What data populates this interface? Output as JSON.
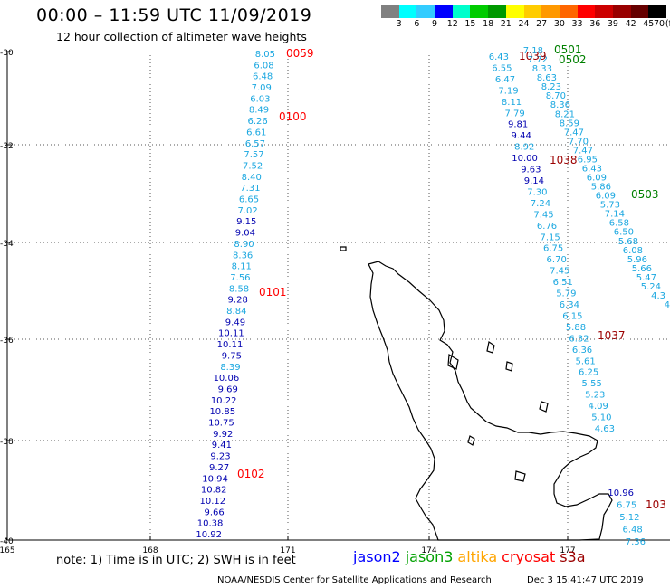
{
  "header": {
    "title": "00:00 – 11:59 UTC 11/09/2019",
    "subtitle": "12 hour collection of altimeter wave heights"
  },
  "scale": {
    "unit_label": "(ft)",
    "ticks": [
      "3",
      "6",
      "9",
      "12",
      "15",
      "18",
      "21",
      "24",
      "27",
      "30",
      "33",
      "36",
      "39",
      "42",
      "45",
      "70"
    ],
    "colors": [
      "#808080",
      "#00ffff",
      "#33ccff",
      "#0000ff",
      "#00ffcc",
      "#00cc00",
      "#009900",
      "#ffff00",
      "#ffcc00",
      "#ff9900",
      "#ff6600",
      "#ff0000",
      "#cc0000",
      "#990000",
      "#660000",
      "#000000"
    ]
  },
  "map": {
    "lat_labels": [
      "-30",
      "-32",
      "-34",
      "-36",
      "-38",
      "-40"
    ],
    "lon_labels": [
      "165",
      "168",
      "171",
      "174",
      "177"
    ],
    "line_color": "#000000",
    "grid_color": "#555555",
    "coast_color": "#000000"
  },
  "tracks": {
    "colors": {
      "light": "#1aa7e0",
      "dark": "#0000b0",
      "red": "#ff0000",
      "darkred": "#9b0000",
      "green": "#008000"
    },
    "track1": [
      {
        "v": "8.05",
        "c": "light"
      },
      {
        "v": "6.08",
        "c": "light"
      },
      {
        "v": "6.48",
        "c": "light"
      },
      {
        "v": "7.09",
        "c": "light"
      },
      {
        "v": "6.03",
        "c": "light"
      },
      {
        "v": "8.49",
        "c": "light"
      },
      {
        "v": "6.26",
        "c": "light"
      },
      {
        "v": "6.61",
        "c": "light"
      },
      {
        "v": "6.57",
        "c": "light"
      },
      {
        "v": "7.57",
        "c": "light"
      },
      {
        "v": "7.52",
        "c": "light"
      },
      {
        "v": "8.40",
        "c": "light"
      },
      {
        "v": "7.31",
        "c": "light"
      },
      {
        "v": "6.65",
        "c": "light"
      },
      {
        "v": "7.02",
        "c": "light"
      },
      {
        "v": "9.15",
        "c": "dark"
      },
      {
        "v": "9.04",
        "c": "dark"
      },
      {
        "v": "8.90",
        "c": "light"
      },
      {
        "v": "8.36",
        "c": "light"
      },
      {
        "v": "8.11",
        "c": "light"
      },
      {
        "v": "7.56",
        "c": "light"
      },
      {
        "v": "8.58",
        "c": "light"
      },
      {
        "v": "9.28",
        "c": "dark"
      },
      {
        "v": "8.84",
        "c": "light"
      },
      {
        "v": "9.49",
        "c": "dark"
      },
      {
        "v": "10.11",
        "c": "dark"
      },
      {
        "v": "10.11",
        "c": "dark"
      },
      {
        "v": "9.75",
        "c": "dark"
      },
      {
        "v": "8.39",
        "c": "light"
      },
      {
        "v": "10.06",
        "c": "dark"
      },
      {
        "v": "9.69",
        "c": "dark"
      },
      {
        "v": "10.22",
        "c": "dark"
      },
      {
        "v": "10.85",
        "c": "dark"
      },
      {
        "v": "10.75",
        "c": "dark"
      },
      {
        "v": "9.92",
        "c": "dark"
      },
      {
        "v": "9.41",
        "c": "dark"
      },
      {
        "v": "9.23",
        "c": "dark"
      },
      {
        "v": "9.27",
        "c": "dark"
      },
      {
        "v": "10.94",
        "c": "dark"
      },
      {
        "v": "10.82",
        "c": "dark"
      },
      {
        "v": "10.12",
        "c": "dark"
      },
      {
        "v": "9.66",
        "c": "dark"
      },
      {
        "v": "10.38",
        "c": "dark"
      },
      {
        "v": "10.92",
        "c": "dark"
      }
    ],
    "track2": [
      {
        "v": "6.43",
        "c": "light"
      },
      {
        "v": "6.55",
        "c": "light"
      },
      {
        "v": "6.47",
        "c": "light"
      },
      {
        "v": "7.19",
        "c": "light"
      },
      {
        "v": "8.11",
        "c": "light"
      },
      {
        "v": "7.79",
        "c": "light"
      },
      {
        "v": "9.81",
        "c": "dark"
      },
      {
        "v": "9.44",
        "c": "dark"
      },
      {
        "v": "8.92",
        "c": "light"
      },
      {
        "v": "10.00",
        "c": "dark"
      },
      {
        "v": "9.63",
        "c": "dark"
      },
      {
        "v": "9.14",
        "c": "dark"
      },
      {
        "v": "7.30",
        "c": "light"
      },
      {
        "v": "7.24",
        "c": "light"
      },
      {
        "v": "7.45",
        "c": "light"
      },
      {
        "v": "6.76",
        "c": "light"
      },
      {
        "v": "7.15",
        "c": "light"
      },
      {
        "v": "6.75",
        "c": "light"
      },
      {
        "v": "6.70",
        "c": "light"
      },
      {
        "v": "7.45",
        "c": "light"
      },
      {
        "v": "6.51",
        "c": "light"
      },
      {
        "v": "5.79",
        "c": "light"
      },
      {
        "v": "6.34",
        "c": "light"
      },
      {
        "v": "6.15",
        "c": "light"
      },
      {
        "v": "5.88",
        "c": "light"
      },
      {
        "v": "6.32",
        "c": "light"
      },
      {
        "v": "6.36",
        "c": "light"
      },
      {
        "v": "5.61",
        "c": "light"
      },
      {
        "v": "6.25",
        "c": "light"
      },
      {
        "v": "5.55",
        "c": "light"
      },
      {
        "v": "5.23",
        "c": "light"
      },
      {
        "v": "4.09",
        "c": "light"
      },
      {
        "v": "5.10",
        "c": "light"
      },
      {
        "v": "4.63",
        "c": "light"
      }
    ],
    "track3": [
      {
        "v": "7.18",
        "c": "light"
      },
      {
        "v": "7.72",
        "c": "light"
      },
      {
        "v": "8.33",
        "c": "light"
      },
      {
        "v": "8.63",
        "c": "light"
      },
      {
        "v": "8.23",
        "c": "light"
      },
      {
        "v": "8.70",
        "c": "light"
      },
      {
        "v": "8.36",
        "c": "light"
      },
      {
        "v": "8.21",
        "c": "light"
      },
      {
        "v": "8.59",
        "c": "light"
      },
      {
        "v": "7.47",
        "c": "light"
      },
      {
        "v": "7.70",
        "c": "light"
      },
      {
        "v": "7.47",
        "c": "light"
      },
      {
        "v": "6.95",
        "c": "light"
      },
      {
        "v": "6.43",
        "c": "light"
      },
      {
        "v": "6.09",
        "c": "light"
      },
      {
        "v": "5.86",
        "c": "light"
      },
      {
        "v": "6.09",
        "c": "light"
      },
      {
        "v": "5.73",
        "c": "light"
      },
      {
        "v": "7.14",
        "c": "light"
      },
      {
        "v": "6.58",
        "c": "light"
      },
      {
        "v": "6.50",
        "c": "light"
      },
      {
        "v": "5.68",
        "c": "light"
      },
      {
        "v": "6.08",
        "c": "light"
      },
      {
        "v": "5.96",
        "c": "light"
      },
      {
        "v": "5.66",
        "c": "light"
      },
      {
        "v": "5.47",
        "c": "light"
      },
      {
        "v": "5.24",
        "c": "light"
      },
      {
        "v": "4.3",
        "c": "light"
      },
      {
        "v": "4",
        "c": "light"
      }
    ],
    "track4": [
      {
        "v": "10.96",
        "c": "dark"
      },
      {
        "v": "6.75",
        "c": "light"
      },
      {
        "v": "5.12",
        "c": "light"
      },
      {
        "v": "6.48",
        "c": "light"
      },
      {
        "v": "7.36",
        "c": "light"
      }
    ],
    "time_labels": [
      {
        "t": "0059",
        "c": "red"
      },
      {
        "t": "0100",
        "c": "red"
      },
      {
        "t": "0101",
        "c": "red"
      },
      {
        "t": "0102",
        "c": "red"
      },
      {
        "t": "1039",
        "c": "darkred"
      },
      {
        "t": "1038",
        "c": "darkred"
      },
      {
        "t": "1037",
        "c": "darkred"
      },
      {
        "t": "103",
        "c": "darkred"
      },
      {
        "t": "0501",
        "c": "green"
      },
      {
        "t": "0502",
        "c": "green"
      },
      {
        "t": "0503",
        "c": "green"
      }
    ]
  },
  "footer": {
    "note": "note: 1) Time is in UTC; 2) SWH is in feet",
    "legend": [
      {
        "name": "jason2",
        "color": "#0000ff"
      },
      {
        "name": "jason3",
        "color": "#00a000"
      },
      {
        "name": "altika",
        "color": "#ffa500"
      },
      {
        "name": "cryosat",
        "color": "#ff0000"
      },
      {
        "name": "s3a",
        "color": "#9b0000"
      }
    ],
    "credit_org": "NOAA/NESDIS Center for Satellite Applications and Research",
    "credit_date": "Dec  3 15:41:47 UTC 2019"
  }
}
